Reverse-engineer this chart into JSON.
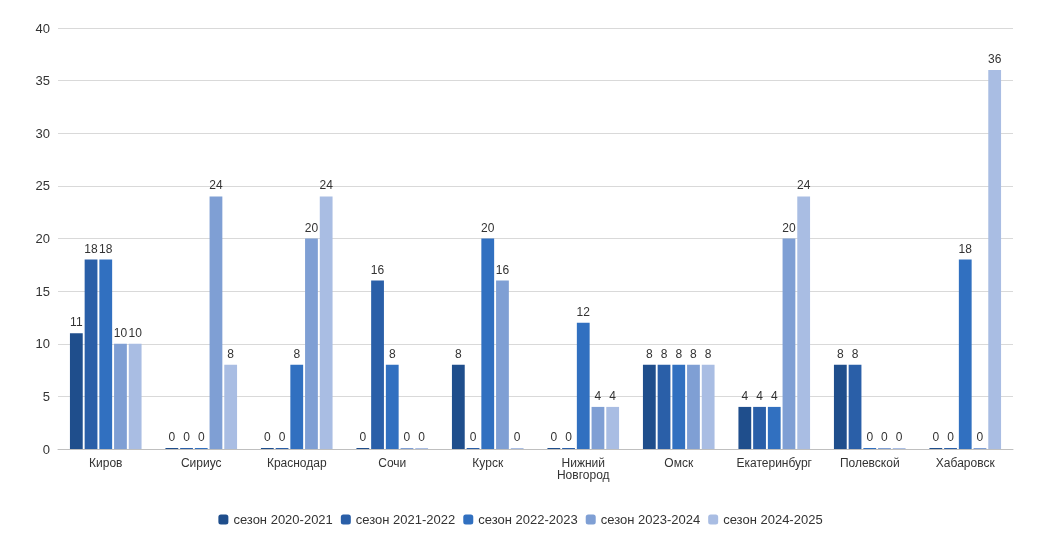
{
  "chart_data": {
    "type": "bar",
    "categories": [
      "Киров",
      "Сириус",
      "Краснодар",
      "Сочи",
      "Курск",
      "Нижний Новгород",
      "Омск",
      "Екатеринбург",
      "Полевской",
      "Хабаровск"
    ],
    "series": [
      {
        "name": "сезон 2020-2021",
        "color": "#1f4e8c",
        "values": [
          11,
          0,
          0,
          0,
          8,
          0,
          8,
          4,
          8,
          0
        ]
      },
      {
        "name": "сезон 2021-2022",
        "color": "#2a5fa8",
        "values": [
          18,
          0,
          0,
          16,
          0,
          0,
          8,
          4,
          8,
          0
        ]
      },
      {
        "name": "сезон 2022-2023",
        "color": "#3170c0",
        "values": [
          18,
          0,
          8,
          8,
          20,
          12,
          8,
          4,
          0,
          18
        ]
      },
      {
        "name": "сезон 2023-2024",
        "color": "#7f9fd4",
        "values": [
          10,
          24,
          20,
          0,
          16,
          4,
          8,
          20,
          0,
          0
        ]
      },
      {
        "name": "сезон 2024-2025",
        "color": "#a9bde3",
        "values": [
          10,
          8,
          24,
          0,
          0,
          4,
          8,
          24,
          0,
          36
        ]
      }
    ],
    "ylim": [
      0,
      40
    ],
    "yticks": [
      0,
      5,
      10,
      15,
      20,
      25,
      30,
      35,
      40
    ],
    "grid": "y",
    "legend": "bottom",
    "data_labels": true
  }
}
